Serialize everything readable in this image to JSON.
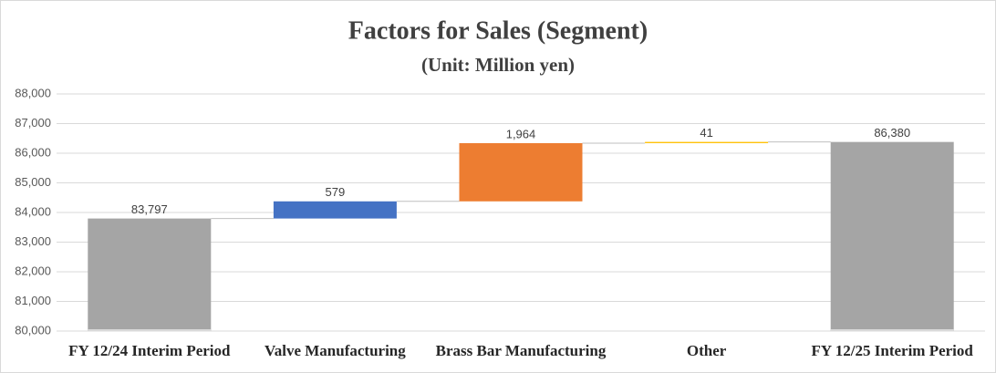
{
  "chart_data": {
    "type": "waterfall",
    "title": "Factors for Sales (Segment)",
    "subtitle": "(Unit: Million yen)",
    "categories": [
      "FY 12/24 Interim Period",
      "Valve Manufacturing",
      "Brass Bar Manufacturing",
      "Other",
      "FY 12/25 Interim Period"
    ],
    "values": [
      83797,
      579,
      1964,
      41,
      86380
    ],
    "value_labels": [
      "83,797",
      "579",
      "1,964",
      "41",
      "86,380"
    ],
    "colors": [
      "#a5a5a5",
      "#4472c4",
      "#ed7d31",
      "#ffc000",
      "#a5a5a5"
    ],
    "ylim": [
      80000,
      88000
    ],
    "yticks": [
      {
        "value": 80000,
        "label": "80,000"
      },
      {
        "value": 81000,
        "label": "81,000"
      },
      {
        "value": 82000,
        "label": "82,000"
      },
      {
        "value": 83000,
        "label": "83,000"
      },
      {
        "value": 84000,
        "label": "84,000"
      },
      {
        "value": 85000,
        "label": "85,000"
      },
      {
        "value": 86000,
        "label": "86,000"
      },
      {
        "value": 87000,
        "label": "87,000"
      },
      {
        "value": 88000,
        "label": "88,000"
      }
    ],
    "grid": true
  }
}
